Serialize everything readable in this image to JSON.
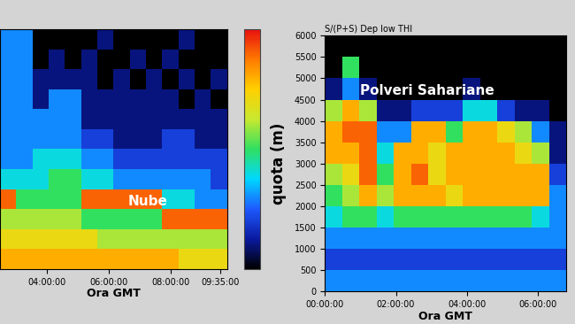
{
  "chart_data": [
    {
      "type": "heatmap",
      "xlabel": "Ora GMT",
      "xlim": [
        2.5,
        9.8
      ],
      "ylim": [
        0,
        6000
      ],
      "xticks": [
        {
          "value": 4,
          "label": "04:00:00"
        },
        {
          "value": 6,
          "label": "06:00:00"
        },
        {
          "value": 8,
          "label": "08:00:00"
        },
        {
          "value": 9.5833,
          "label": "09:35:00"
        }
      ],
      "tick_labels": "x",
      "colorbar_range": [
        0,
        10
      ],
      "annotations": [
        {
          "text": "Nube",
          "x": 6.6,
          "y": 1700
        }
      ],
      "cells": [
        [
          8,
          8,
          8,
          8,
          8,
          8,
          8,
          8,
          8,
          8,
          8,
          7,
          7,
          7
        ],
        [
          7,
          7,
          7,
          7,
          7,
          7,
          6,
          6,
          6,
          6,
          6,
          6,
          6,
          6
        ],
        [
          6,
          6,
          6,
          6,
          6,
          5,
          5,
          5,
          5,
          5,
          9,
          9,
          9,
          9
        ],
        [
          9,
          5,
          5,
          5,
          5,
          9,
          9,
          9,
          9,
          9,
          4,
          4,
          3,
          3
        ],
        [
          4,
          4,
          4,
          5,
          5,
          4,
          4,
          3,
          3,
          3,
          3,
          3,
          3,
          2
        ],
        [
          3,
          3,
          4,
          4,
          4,
          3,
          3,
          2,
          2,
          2,
          2,
          2,
          2,
          2
        ],
        [
          3,
          3,
          3,
          3,
          3,
          2,
          2,
          1,
          1,
          1,
          2,
          2,
          1,
          1
        ],
        [
          3,
          3,
          3,
          3,
          3,
          1,
          1,
          1,
          1,
          1,
          1,
          1,
          1,
          1
        ],
        [
          3,
          3,
          1,
          3,
          3,
          1,
          1,
          1,
          1,
          1,
          1,
          0,
          1,
          0
        ],
        [
          3,
          3,
          1,
          1,
          1,
          1,
          0,
          1,
          0,
          1,
          0,
          1,
          0,
          1
        ],
        [
          3,
          3,
          0,
          1,
          0,
          1,
          0,
          0,
          1,
          0,
          1,
          0,
          0,
          0
        ],
        [
          3,
          3,
          0,
          0,
          0,
          0,
          1,
          0,
          0,
          0,
          0,
          1,
          0,
          0
        ]
      ]
    },
    {
      "type": "heatmap",
      "title": "S/(P+S) Dep low THI",
      "xlabel": "Ora GMT",
      "ylabel": "quota (m)",
      "xlim": [
        0,
        6.8
      ],
      "ylim": [
        0,
        6000
      ],
      "xticks": [
        {
          "value": 0,
          "label": "00:00:00"
        },
        {
          "value": 2,
          "label": "02:00:00"
        },
        {
          "value": 4,
          "label": "04:00:00"
        },
        {
          "value": 6,
          "label": "06:00:00"
        }
      ],
      "yticks": [
        0,
        500,
        1000,
        1500,
        2000,
        2500,
        3000,
        3500,
        4000,
        4500,
        5000,
        5500,
        6000
      ],
      "color_range": [
        0,
        10
      ],
      "annotations": [
        {
          "text": "Polveri Sahariane",
          "x": 1.0,
          "y": 4700
        }
      ],
      "cells": [
        [
          3,
          3,
          3,
          3,
          3,
          3,
          3,
          3,
          3,
          3,
          3,
          3,
          3,
          3
        ],
        [
          2,
          2,
          2,
          2,
          2,
          2,
          2,
          2,
          2,
          2,
          2,
          2,
          2,
          2
        ],
        [
          3,
          3,
          3,
          3,
          3,
          3,
          3,
          3,
          3,
          3,
          3,
          3,
          3,
          3
        ],
        [
          4,
          5,
          5,
          4,
          5,
          5,
          5,
          5,
          5,
          5,
          5,
          5,
          4,
          3
        ],
        [
          5,
          6,
          8,
          6,
          8,
          8,
          8,
          7,
          8,
          8,
          8,
          8,
          8,
          3
        ],
        [
          6,
          7,
          9,
          5,
          8,
          9,
          7,
          8,
          8,
          8,
          8,
          8,
          8,
          2
        ],
        [
          8,
          8,
          9,
          4,
          8,
          8,
          7,
          8,
          8,
          8,
          8,
          7,
          6,
          1
        ],
        [
          8,
          9,
          9,
          3,
          3,
          8,
          8,
          5,
          8,
          8,
          7,
          6,
          3,
          1
        ],
        [
          6,
          8,
          6,
          1,
          1,
          2,
          2,
          2,
          4,
          4,
          2,
          1,
          1,
          0
        ],
        [
          1,
          3,
          1,
          0,
          0,
          0,
          0,
          0,
          1,
          0,
          0,
          0,
          0,
          0
        ],
        [
          0,
          5,
          0,
          0,
          0,
          0,
          0,
          0,
          0,
          0,
          0,
          0,
          0,
          0
        ],
        [
          0,
          0,
          0,
          0,
          0,
          0,
          0,
          0,
          0,
          0,
          0,
          0,
          0,
          0
        ]
      ]
    }
  ]
}
